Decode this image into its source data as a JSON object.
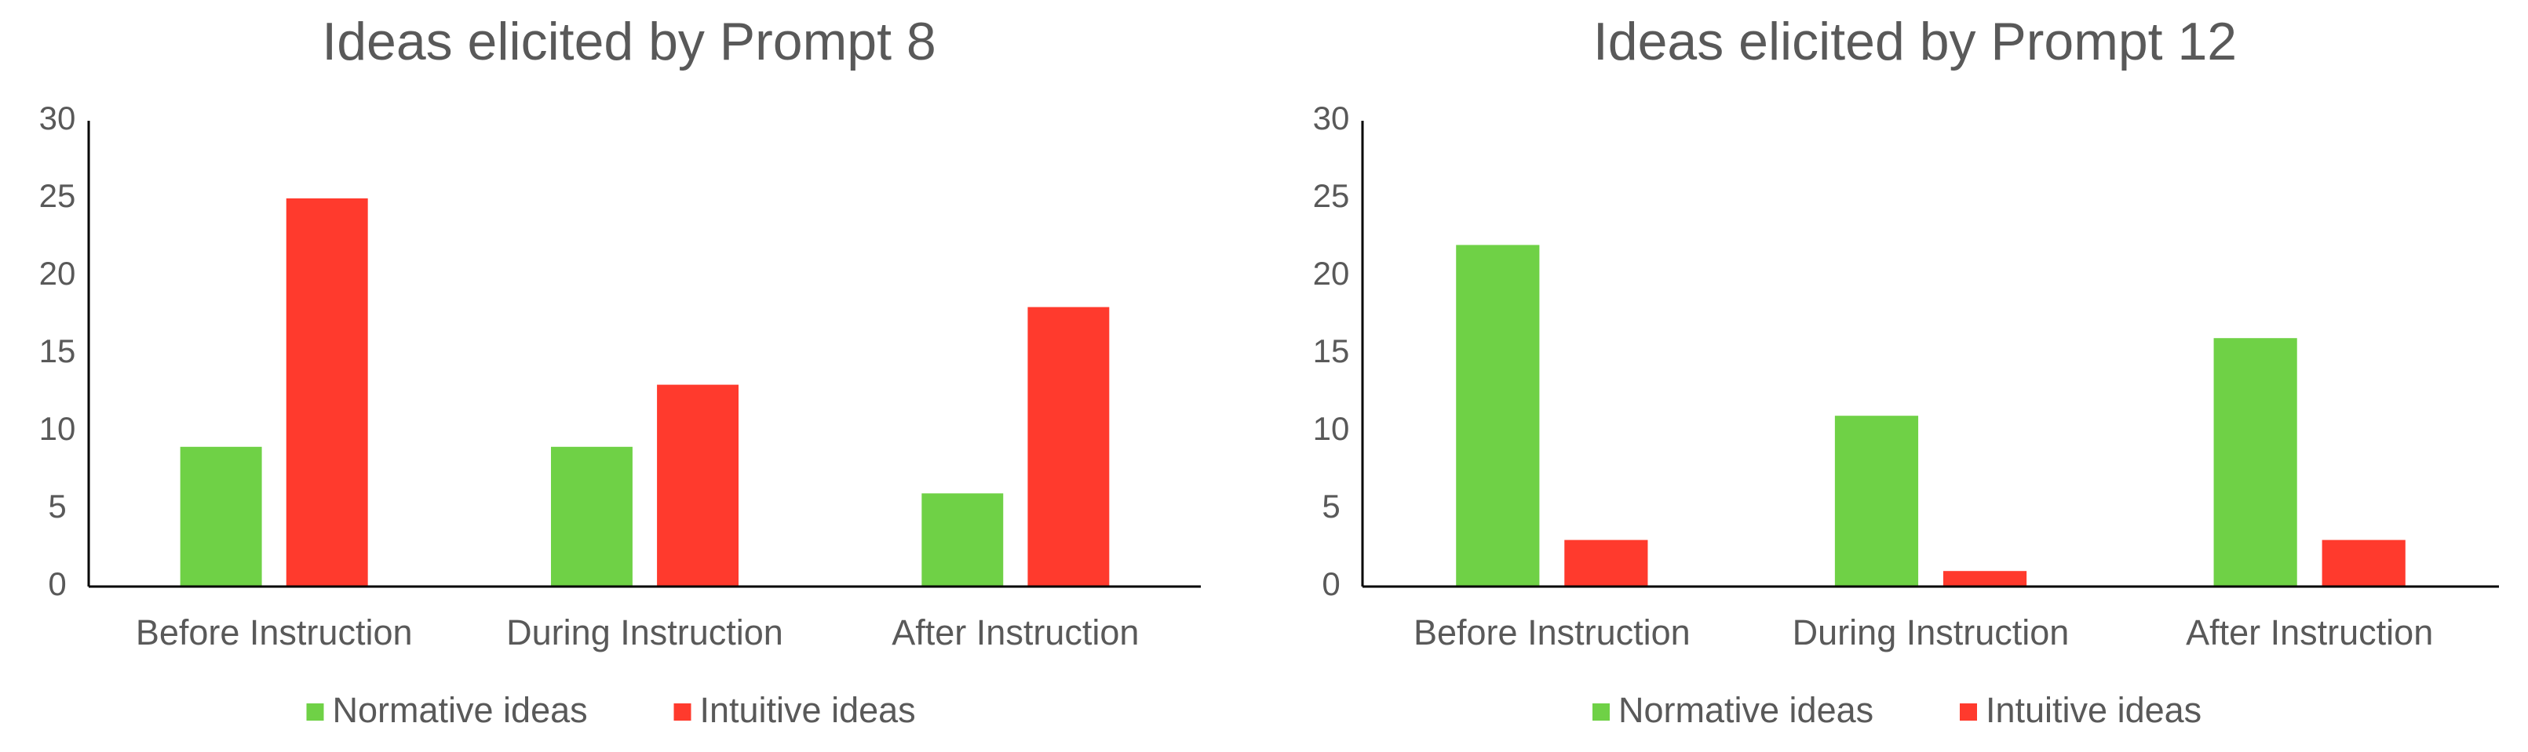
{
  "chart_data": [
    {
      "type": "bar",
      "title": "Ideas elicited by Prompt 8",
      "categories": [
        "Before Instruction",
        "During Instruction",
        "After Instruction"
      ],
      "series": [
        {
          "name": "Normative ideas",
          "color": "#6fd146",
          "values": [
            9,
            9,
            6
          ]
        },
        {
          "name": "Intuitive ideas",
          "color": "#ff3a2d",
          "values": [
            25,
            13,
            18
          ]
        }
      ],
      "ylim": [
        0,
        30
      ],
      "yticks": [
        0,
        5,
        10,
        15,
        20,
        25,
        30
      ],
      "legend": "bottom"
    },
    {
      "type": "bar",
      "title": "Ideas elicited by Prompt 12",
      "categories": [
        "Before Instruction",
        "During Instruction",
        "After Instruction"
      ],
      "series": [
        {
          "name": "Normative ideas",
          "color": "#6fd146",
          "values": [
            22,
            11,
            16
          ]
        },
        {
          "name": "Intuitive ideas",
          "color": "#ff3a2d",
          "values": [
            3,
            1,
            3
          ]
        }
      ],
      "ylim": [
        0,
        30
      ],
      "yticks": [
        0,
        5,
        10,
        15,
        20,
        25,
        30
      ],
      "legend": "bottom"
    }
  ]
}
